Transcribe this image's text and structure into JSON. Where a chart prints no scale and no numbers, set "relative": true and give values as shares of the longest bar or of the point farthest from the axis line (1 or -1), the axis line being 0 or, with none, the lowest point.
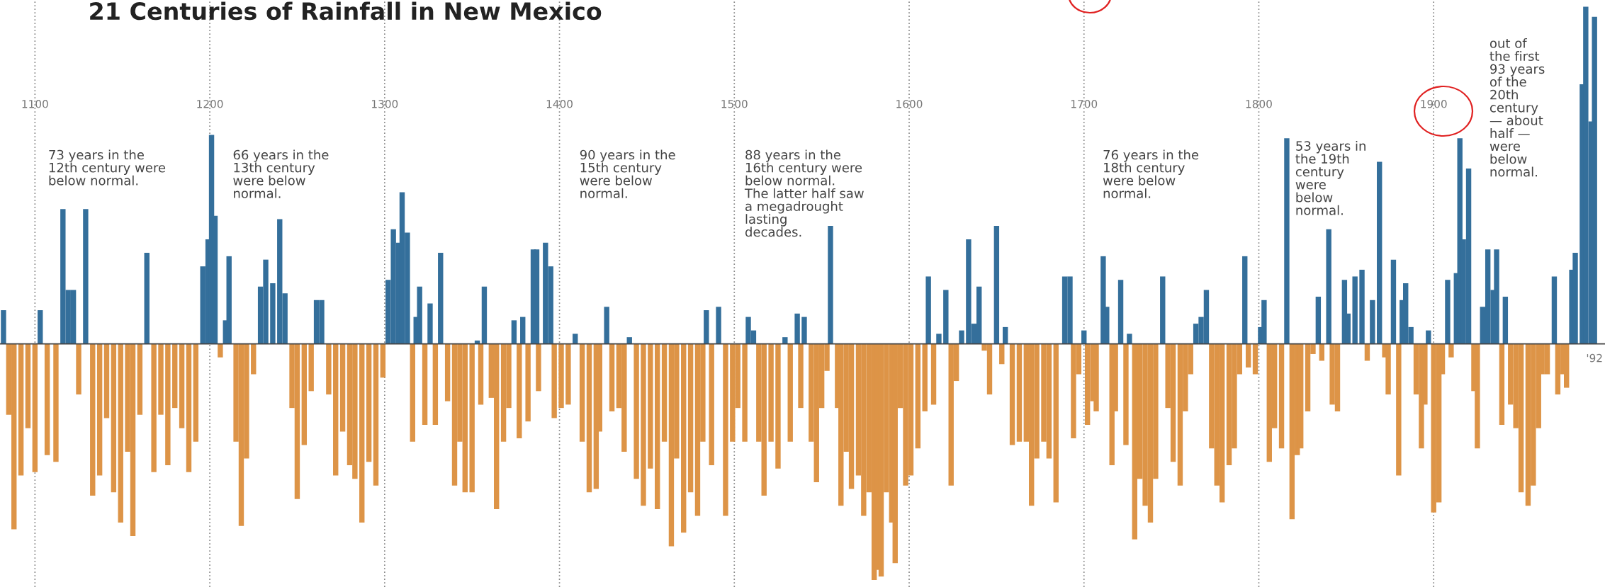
{
  "chart_data": {
    "type": "bar",
    "relative": true,
    "title": "21 Centuries of Rainfall in New Mexico",
    "xlim": [
      1080,
      1998
    ],
    "xticks": [
      1100,
      1200,
      1300,
      1400,
      1500,
      1600,
      1700,
      1800,
      1900
    ],
    "grid": "x",
    "series": [
      {
        "color": "#346f9b",
        "x": [
          1082,
          1103,
          1116,
          1119,
          1122,
          1129,
          1164,
          1196,
          1199,
          1201,
          1203,
          1209,
          1211,
          1229,
          1232,
          1236,
          1240,
          1243,
          1261,
          1264,
          1302,
          1305,
          1308,
          1310,
          1313,
          1318,
          1320,
          1326,
          1332,
          1353,
          1357,
          1374,
          1379,
          1385,
          1387,
          1392,
          1395,
          1409,
          1427,
          1440,
          1484,
          1491,
          1508,
          1511,
          1529,
          1536,
          1540,
          1555,
          1611,
          1617,
          1621,
          1630,
          1634,
          1637,
          1640,
          1650,
          1655,
          1689,
          1692,
          1700,
          1711,
          1713,
          1721,
          1726,
          1745,
          1764,
          1767,
          1770,
          1792,
          1801,
          1803,
          1816,
          1834,
          1840,
          1849,
          1851,
          1855,
          1859,
          1865,
          1869,
          1877,
          1882,
          1884,
          1887,
          1897,
          1908,
          1913,
          1915,
          1917,
          1920,
          1928,
          1931,
          1934,
          1936,
          1941,
          1969,
          1979,
          1981,
          1985,
          1987,
          1990,
          1992
        ],
        "values": [
          0.1,
          0.1,
          0.4,
          0.16,
          0.16,
          0.4,
          0.27,
          0.23,
          0.31,
          0.62,
          0.38,
          0.07,
          0.26,
          0.17,
          0.25,
          0.18,
          0.37,
          0.15,
          0.13,
          0.13,
          0.19,
          0.34,
          0.3,
          0.45,
          0.33,
          0.08,
          0.17,
          0.12,
          0.27,
          0.01,
          0.17,
          0.07,
          0.08,
          0.28,
          0.28,
          0.3,
          0.23,
          0.03,
          0.11,
          0.02,
          0.1,
          0.11,
          0.08,
          0.04,
          0.02,
          0.09,
          0.08,
          0.35,
          0.2,
          0.03,
          0.16,
          0.04,
          0.31,
          0.06,
          0.17,
          0.35,
          0.05,
          0.2,
          0.2,
          0.04,
          0.26,
          0.11,
          0.19,
          0.03,
          0.2,
          0.06,
          0.08,
          0.16,
          0.26,
          0.05,
          0.13,
          0.61,
          0.14,
          0.34,
          0.19,
          0.09,
          0.2,
          0.22,
          0.13,
          0.54,
          0.25,
          0.13,
          0.18,
          0.05,
          0.04,
          0.19,
          0.21,
          0.61,
          0.31,
          0.52,
          0.11,
          0.28,
          0.16,
          0.28,
          0.14,
          0.2,
          0.22,
          0.27,
          0.77,
          1.0,
          0.66,
          0.97
        ]
      },
      {
        "color": "#dd9447",
        "x": [
          1085,
          1088,
          1092,
          1096,
          1100,
          1107,
          1112,
          1125,
          1133,
          1137,
          1141,
          1145,
          1149,
          1153,
          1156,
          1160,
          1168,
          1172,
          1176,
          1180,
          1184,
          1188,
          1192,
          1206,
          1215,
          1218,
          1221,
          1225,
          1247,
          1250,
          1254,
          1258,
          1268,
          1272,
          1276,
          1280,
          1283,
          1287,
          1291,
          1295,
          1299,
          1316,
          1323,
          1329,
          1336,
          1340,
          1343,
          1346,
          1350,
          1355,
          1361,
          1364,
          1368,
          1371,
          1377,
          1382,
          1388,
          1397,
          1401,
          1405,
          1413,
          1417,
          1421,
          1423,
          1430,
          1434,
          1437,
          1444,
          1448,
          1452,
          1456,
          1460,
          1464,
          1467,
          1471,
          1475,
          1479,
          1482,
          1487,
          1495,
          1499,
          1502,
          1506,
          1514,
          1517,
          1521,
          1525,
          1532,
          1538,
          1544,
          1547,
          1550,
          1553,
          1559,
          1561,
          1564,
          1567,
          1571,
          1574,
          1577,
          1580,
          1582,
          1584,
          1587,
          1590,
          1592,
          1595,
          1598,
          1601,
          1605,
          1609,
          1614,
          1624,
          1627,
          1643,
          1646,
          1653,
          1659,
          1663,
          1667,
          1670,
          1673,
          1677,
          1680,
          1684,
          1694,
          1697,
          1702,
          1705,
          1707,
          1716,
          1718,
          1724,
          1729,
          1732,
          1735,
          1738,
          1741,
          1748,
          1751,
          1755,
          1758,
          1761,
          1773,
          1776,
          1779,
          1783,
          1786,
          1789,
          1794,
          1798,
          1806,
          1809,
          1813,
          1819,
          1822,
          1824,
          1828,
          1831,
          1836,
          1842,
          1845,
          1862,
          1872,
          1874,
          1880,
          1890,
          1893,
          1895,
          1900,
          1903,
          1905,
          1910,
          1923,
          1925,
          1939,
          1944,
          1947,
          1950,
          1954,
          1957,
          1960,
          1962,
          1965,
          1971,
          1974,
          1976
        ],
        "values": [
          -0.21,
          -0.55,
          -0.39,
          -0.25,
          -0.38,
          -0.33,
          -0.35,
          -0.15,
          -0.45,
          -0.39,
          -0.22,
          -0.44,
          -0.53,
          -0.32,
          -0.57,
          -0.21,
          -0.38,
          -0.21,
          -0.36,
          -0.19,
          -0.25,
          -0.38,
          -0.29,
          -0.04,
          -0.29,
          -0.54,
          -0.34,
          -0.09,
          -0.19,
          -0.46,
          -0.3,
          -0.14,
          -0.15,
          -0.39,
          -0.26,
          -0.36,
          -0.4,
          -0.53,
          -0.35,
          -0.42,
          -0.1,
          -0.29,
          -0.24,
          -0.24,
          -0.17,
          -0.42,
          -0.29,
          -0.44,
          -0.44,
          -0.18,
          -0.16,
          -0.49,
          -0.29,
          -0.19,
          -0.28,
          -0.23,
          -0.14,
          -0.22,
          -0.19,
          -0.18,
          -0.29,
          -0.44,
          -0.43,
          -0.26,
          -0.2,
          -0.19,
          -0.32,
          -0.4,
          -0.48,
          -0.37,
          -0.49,
          -0.29,
          -0.6,
          -0.34,
          -0.56,
          -0.44,
          -0.51,
          -0.29,
          -0.36,
          -0.51,
          -0.29,
          -0.19,
          -0.29,
          -0.29,
          -0.45,
          -0.29,
          -0.37,
          -0.29,
          -0.19,
          -0.29,
          -0.41,
          -0.19,
          -0.08,
          -0.19,
          -0.48,
          -0.32,
          -0.43,
          -0.39,
          -0.51,
          -0.44,
          -0.7,
          -0.67,
          -0.69,
          -0.44,
          -0.53,
          -0.65,
          -0.19,
          -0.42,
          -0.39,
          -0.31,
          -0.2,
          -0.18,
          -0.42,
          -0.11,
          -0.02,
          -0.15,
          -0.06,
          -0.3,
          -0.29,
          -0.29,
          -0.48,
          -0.34,
          -0.29,
          -0.34,
          -0.47,
          -0.28,
          -0.09,
          -0.24,
          -0.17,
          -0.2,
          -0.36,
          -0.2,
          -0.3,
          -0.58,
          -0.4,
          -0.48,
          -0.53,
          -0.4,
          -0.19,
          -0.35,
          -0.42,
          -0.2,
          -0.09,
          -0.31,
          -0.42,
          -0.47,
          -0.36,
          -0.31,
          -0.09,
          -0.07,
          -0.09,
          -0.35,
          -0.25,
          -0.31,
          -0.52,
          -0.33,
          -0.31,
          -0.2,
          -0.03,
          -0.05,
          -0.18,
          -0.2,
          -0.05,
          -0.04,
          -0.15,
          -0.39,
          -0.15,
          -0.31,
          -0.18,
          -0.5,
          -0.47,
          -0.09,
          -0.04,
          -0.14,
          -0.31,
          -0.24,
          -0.18,
          -0.25,
          -0.44,
          -0.48,
          -0.42,
          -0.25,
          -0.09,
          -0.09,
          -0.15,
          -0.09,
          -0.13
        ]
      }
    ],
    "annotations": [
      {
        "text": "'92",
        "x": 1992,
        "y": 0
      },
      "73 years in the\n12th century were\nbelow normal.",
      "66 years in the\n13th century\nwere below\nnormal.",
      "90 years in the\n15th century\nwere below\nnormal.",
      "88 years in the\n16th century were\nbelow normal.\nThe latter half saw\na megadrought\nlasting\ndecades.",
      "76 years in the\n18th century\nwere below\nnormal.",
      "53 years in\nthe 19th\ncentury\nwere\nbelow\nnormal.",
      "out of\nthe first\n93 years\nof the\n20th\ncentury\n— about\nhalf —\nwere\nbelow\nnormal."
    ]
  }
}
